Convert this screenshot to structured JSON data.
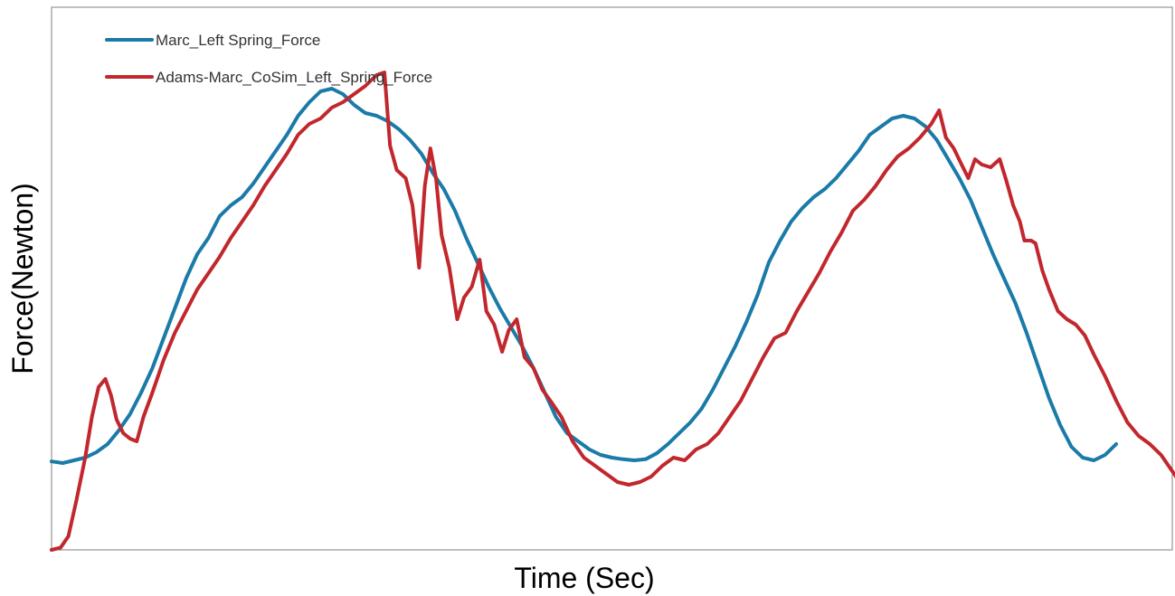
{
  "chart_data": {
    "type": "line",
    "title": "",
    "xlabel": "Time (Sec)",
    "ylabel": "Force(Newton)",
    "xlim": [
      0,
      100
    ],
    "ylim": [
      0,
      100
    ],
    "grid": false,
    "ticks": false,
    "legend_position": "top-left",
    "series": [
      {
        "name": "Marc_Left Spring_Force",
        "color": "#1a7aa8",
        "points": [
          [
            0,
            16.3
          ],
          [
            1,
            16.0
          ],
          [
            2,
            16.5
          ],
          [
            3,
            17.0
          ],
          [
            4,
            18.0
          ],
          [
            5,
            19.5
          ],
          [
            6,
            22.0
          ],
          [
            7,
            25.0
          ],
          [
            8,
            29.0
          ],
          [
            9,
            33.5
          ],
          [
            10,
            39.0
          ],
          [
            11,
            44.5
          ],
          [
            12,
            50.0
          ],
          [
            13,
            54.5
          ],
          [
            14,
            57.5
          ],
          [
            15,
            61.5
          ],
          [
            16,
            63.5
          ],
          [
            17,
            65.0
          ],
          [
            18,
            67.5
          ],
          [
            19,
            70.5
          ],
          [
            20,
            73.5
          ],
          [
            21,
            76.5
          ],
          [
            22,
            80.0
          ],
          [
            23,
            82.5
          ],
          [
            24,
            84.5
          ],
          [
            25,
            85.0
          ],
          [
            26,
            84.0
          ],
          [
            27,
            82.0
          ],
          [
            28,
            80.5
          ],
          [
            29,
            80.0
          ],
          [
            30,
            79.0
          ],
          [
            31,
            77.5
          ],
          [
            32,
            75.5
          ],
          [
            33,
            73.0
          ],
          [
            34,
            69.5
          ],
          [
            35,
            66.5
          ],
          [
            36,
            62.5
          ],
          [
            37,
            57.5
          ],
          [
            38,
            53.0
          ],
          [
            39,
            48.5
          ],
          [
            40,
            44.5
          ],
          [
            41,
            41.0
          ],
          [
            42,
            37.5
          ],
          [
            43,
            33.5
          ],
          [
            44,
            29.0
          ],
          [
            45,
            24.5
          ],
          [
            46,
            21.5
          ],
          [
            47,
            20.0
          ],
          [
            48,
            18.5
          ],
          [
            49,
            17.5
          ],
          [
            50,
            17.0
          ],
          [
            51,
            16.7
          ],
          [
            52,
            16.5
          ],
          [
            53,
            16.7
          ],
          [
            54,
            17.8
          ],
          [
            55,
            19.5
          ],
          [
            56,
            21.5
          ],
          [
            57,
            23.5
          ],
          [
            58,
            26.0
          ],
          [
            59,
            29.5
          ],
          [
            60,
            33.5
          ],
          [
            61,
            37.5
          ],
          [
            62,
            42.0
          ],
          [
            63,
            47.0
          ],
          [
            64,
            53.0
          ],
          [
            65,
            57.0
          ],
          [
            66,
            60.5
          ],
          [
            67,
            63.0
          ],
          [
            68,
            65.0
          ],
          [
            69,
            66.5
          ],
          [
            70,
            68.5
          ],
          [
            71,
            71.0
          ],
          [
            72,
            73.5
          ],
          [
            73,
            76.5
          ],
          [
            74,
            78.0
          ],
          [
            75,
            79.5
          ],
          [
            76,
            80.0
          ],
          [
            77,
            79.5
          ],
          [
            78,
            78.0
          ],
          [
            79,
            75.5
          ],
          [
            80,
            72.0
          ],
          [
            81,
            68.5
          ],
          [
            82,
            64.5
          ],
          [
            83,
            59.5
          ],
          [
            84,
            54.5
          ],
          [
            85,
            50.0
          ],
          [
            86,
            45.5
          ],
          [
            87,
            40.0
          ],
          [
            88,
            34.0
          ],
          [
            89,
            28.0
          ],
          [
            90,
            23.0
          ],
          [
            91,
            19.0
          ],
          [
            92,
            17.0
          ],
          [
            93,
            16.5
          ],
          [
            94,
            17.5
          ],
          [
            95,
            19.5
          ]
        ]
      },
      {
        "name": "Adams-Marc_CoSim_Left_Spring_Force",
        "color": "#c1272d",
        "points": [
          [
            0,
            0.0
          ],
          [
            0.8,
            0.4
          ],
          [
            1.5,
            2.5
          ],
          [
            2.2,
            9.0
          ],
          [
            3,
            17.0
          ],
          [
            3.6,
            24.5
          ],
          [
            4.2,
            30.0
          ],
          [
            4.8,
            31.5
          ],
          [
            5.3,
            28.5
          ],
          [
            5.8,
            24.0
          ],
          [
            6.4,
            21.5
          ],
          [
            7,
            20.5
          ],
          [
            7.6,
            20.0
          ],
          [
            8.2,
            24.5
          ],
          [
            9,
            29.0
          ],
          [
            10,
            35.0
          ],
          [
            11,
            40.0
          ],
          [
            12,
            44.0
          ],
          [
            13,
            48.0
          ],
          [
            14,
            51.0
          ],
          [
            15,
            54.0
          ],
          [
            16,
            57.5
          ],
          [
            17,
            60.5
          ],
          [
            18,
            63.5
          ],
          [
            19,
            67.0
          ],
          [
            20,
            70.0
          ],
          [
            21,
            73.0
          ],
          [
            22,
            76.5
          ],
          [
            23,
            78.5
          ],
          [
            24,
            79.5
          ],
          [
            25,
            81.5
          ],
          [
            26,
            82.5
          ],
          [
            27,
            84.0
          ],
          [
            28,
            85.5
          ],
          [
            29,
            87.5
          ],
          [
            29.7,
            88.0
          ],
          [
            30.2,
            74.5
          ],
          [
            30.8,
            70.0
          ],
          [
            31.6,
            68.5
          ],
          [
            32.2,
            63.5
          ],
          [
            32.8,
            52.0
          ],
          [
            33.3,
            67.0
          ],
          [
            33.8,
            74.0
          ],
          [
            34.3,
            68.5
          ],
          [
            34.8,
            58.0
          ],
          [
            35.5,
            52.0
          ],
          [
            36.2,
            42.5
          ],
          [
            36.8,
            46.5
          ],
          [
            37.5,
            48.5
          ],
          [
            38.2,
            53.5
          ],
          [
            38.8,
            44.0
          ],
          [
            39.5,
            41.5
          ],
          [
            40.2,
            36.5
          ],
          [
            40.8,
            40.5
          ],
          [
            41.5,
            42.5
          ],
          [
            42.2,
            35.5
          ],
          [
            43,
            33.5
          ],
          [
            43.8,
            29.5
          ],
          [
            44.5,
            27.5
          ],
          [
            45.5,
            24.5
          ],
          [
            46.5,
            20.0
          ],
          [
            47.5,
            17.0
          ],
          [
            48.5,
            15.5
          ],
          [
            49.5,
            14.0
          ],
          [
            50.5,
            12.5
          ],
          [
            51.5,
            12.0
          ],
          [
            52.5,
            12.5
          ],
          [
            53.5,
            13.5
          ],
          [
            54.5,
            15.5
          ],
          [
            55.5,
            17.0
          ],
          [
            56.5,
            16.5
          ],
          [
            57.5,
            18.5
          ],
          [
            58.5,
            19.5
          ],
          [
            59.5,
            21.5
          ],
          [
            60.5,
            24.5
          ],
          [
            61.5,
            27.5
          ],
          [
            62.5,
            31.5
          ],
          [
            63.5,
            35.5
          ],
          [
            64.5,
            39.0
          ],
          [
            65.5,
            40.0
          ],
          [
            66.5,
            44.0
          ],
          [
            67.5,
            47.5
          ],
          [
            68.5,
            51.0
          ],
          [
            69.5,
            55.0
          ],
          [
            70.5,
            58.5
          ],
          [
            71.5,
            62.5
          ],
          [
            72.5,
            64.5
          ],
          [
            73.5,
            67.0
          ],
          [
            74.5,
            70.0
          ],
          [
            75.5,
            72.5
          ],
          [
            76.5,
            74.0
          ],
          [
            77.5,
            76.0
          ],
          [
            78.5,
            78.5
          ],
          [
            79.2,
            81.0
          ],
          [
            79.8,
            76.0
          ],
          [
            80.5,
            74.0
          ],
          [
            81.2,
            71.0
          ],
          [
            81.8,
            68.5
          ],
          [
            82.4,
            72.0
          ],
          [
            83,
            71.0
          ],
          [
            83.8,
            70.5
          ],
          [
            84.6,
            72.0
          ],
          [
            85.2,
            68.0
          ],
          [
            85.8,
            63.5
          ],
          [
            86.4,
            60.5
          ],
          [
            86.8,
            57.0
          ],
          [
            87.4,
            57.0
          ],
          [
            87.8,
            56.5
          ],
          [
            88.4,
            51.5
          ],
          [
            89,
            48.0
          ],
          [
            89.8,
            44.0
          ],
          [
            90.6,
            42.5
          ],
          [
            91.4,
            41.5
          ],
          [
            92.2,
            39.5
          ],
          [
            93,
            36.0
          ],
          [
            94,
            32.0
          ],
          [
            95,
            27.5
          ],
          [
            96,
            23.5
          ],
          [
            97,
            21.0
          ],
          [
            98,
            19.5
          ],
          [
            99,
            17.5
          ],
          [
            100,
            14.5
          ],
          [
            101,
            11.5
          ],
          [
            102,
            9.0
          ],
          [
            103,
            6.0
          ],
          [
            103.6,
            7.0
          ],
          [
            104.3,
            6.0
          ]
        ]
      }
    ]
  }
}
